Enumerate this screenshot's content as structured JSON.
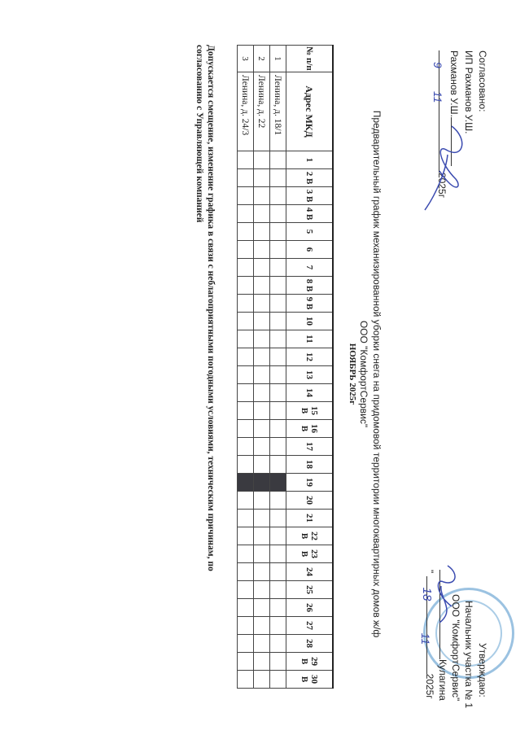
{
  "approval_left": {
    "label": "Согласовано:",
    "org": "ИП Рахманов  У.Ш.",
    "signer": "Рахманов У.Ш.",
    "date_day": "9",
    "date_month": "11",
    "date_year": "2025г"
  },
  "approval_right": {
    "label": "Утверждаю:",
    "position": "Начальник участка № 1",
    "org": "ООО \"КомфортСервис\"",
    "signer": "Кулагина",
    "date_day": "18",
    "date_month": "11",
    "date_year": "2025г",
    "quote": "\""
  },
  "title": {
    "line1": "Предварительный график механизированной уборки снега на придомовой территории многоквартирных домов  ж/ф",
    "line2": "ООО \"КомфортСервис\"",
    "line3": "НОЯБРЬ 2025г"
  },
  "table": {
    "headers": {
      "num": "№ п/п",
      "address": "Адрес МКД"
    },
    "days": [
      "1",
      "2 В",
      "3 В",
      "4 В",
      "5",
      "6",
      "7",
      "8 В",
      "9 В",
      "10",
      "11",
      "12",
      "13",
      "14",
      "15 В",
      "16 В",
      "17",
      "18",
      "19",
      "20",
      "21",
      "22 В",
      "23 В",
      "24",
      "25",
      "26",
      "27",
      "28",
      "29 В",
      "30 В"
    ],
    "rows": [
      {
        "num": "1",
        "address": "Ленина, д. 18/1"
      },
      {
        "num": "2",
        "address": "Ленина, д. 22"
      },
      {
        "num": "3",
        "address": "Ленина, д. 24/3"
      }
    ],
    "shaded_day": "19",
    "shade_color": "#3a3a40"
  },
  "note": {
    "line1": "Допускается смещение, изменение графика  в  связи с неблагоприятными погодными условиями, техническим причинам, по",
    "line2": "согласованию с Управляющей компанией"
  },
  "colors": {
    "ink_blue": "#3b4bb0",
    "stamp_blue": "#8ab8dc"
  }
}
